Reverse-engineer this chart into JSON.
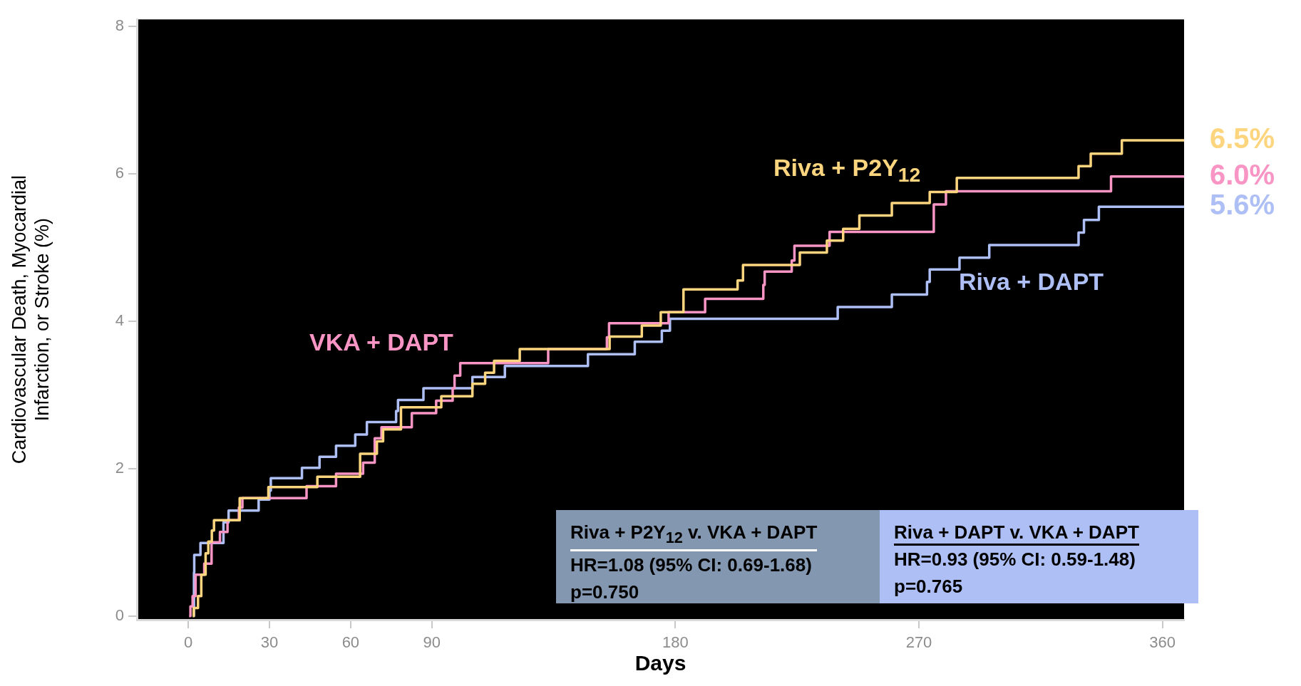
{
  "chart_data": {
    "type": "step",
    "xlabel": "Days",
    "ylabel": "Cardiovascular Death, Myocardial Infarction, or Stroke (%)",
    "xlim": [
      -19,
      368
    ],
    "xticks": [
      0,
      30,
      60,
      90,
      180,
      270,
      360
    ],
    "ylim": [
      -0.05,
      8.09
    ],
    "yticks": [
      0,
      2,
      4,
      6,
      8
    ],
    "grid": false,
    "marker": "none",
    "line_style": "solid",
    "series": [
      {
        "name": "Riva + P2Y$_{12}$",
        "color": "#fcd57e",
        "x": [
          1.6,
          2,
          3.6,
          4.8,
          6.4,
          7.4,
          8.7,
          9.5,
          19,
          29.6,
          47.7,
          63.5,
          69.7,
          72,
          78.6,
          93.5,
          105,
          109.7,
          113,
          122.5,
          155.7,
          167.6,
          174.6,
          183,
          203,
          205,
          226,
          236,
          242,
          248,
          260,
          274,
          284,
          329,
          333.5,
          345,
          368
        ],
        "values": [
          0,
          0.11,
          0.27,
          0.56,
          0.85,
          1.01,
          1.16,
          1.3,
          1.6,
          1.75,
          1.89,
          2.2,
          2.37,
          2.53,
          2.83,
          2.98,
          3.15,
          3.3,
          3.46,
          3.62,
          3.79,
          3.94,
          4.12,
          4.43,
          4.55,
          4.76,
          4.93,
          5.09,
          5.25,
          5.43,
          5.6,
          5.75,
          5.94,
          6.1,
          6.27,
          6.45,
          6.45
        ],
        "value_labels": [
          null,
          null,
          null,
          null,
          null,
          null,
          null,
          null,
          null,
          null,
          null,
          null,
          null,
          null,
          null,
          null,
          null,
          null,
          null,
          null,
          null,
          null,
          null,
          null,
          null,
          null,
          null,
          null,
          null,
          null,
          null,
          null,
          null,
          null,
          null,
          null,
          "6.5%"
        ]
      },
      {
        "name": "VKA + DAPT",
        "color": "#f995c4",
        "x": [
          0.3,
          0.8,
          1.6,
          2.7,
          5.9,
          8.6,
          11.7,
          14.5,
          18.7,
          20,
          43.7,
          54.6,
          64.6,
          68.9,
          71.4,
          82.6,
          91.6,
          97.7,
          98.4,
          100.5,
          133,
          154.7,
          155.5,
          177.5,
          191,
          212.5,
          213,
          223,
          224,
          237,
          275.5,
          280,
          341,
          368
        ],
        "values": [
          0,
          0.13,
          0.27,
          0.56,
          0.71,
          1.0,
          1.14,
          1.3,
          1.47,
          1.6,
          1.76,
          1.93,
          2.08,
          2.41,
          2.56,
          2.75,
          2.92,
          3.09,
          3.26,
          3.43,
          3.62,
          3.78,
          3.97,
          4.12,
          4.3,
          4.49,
          4.67,
          4.82,
          5.02,
          5.21,
          5.58,
          5.76,
          5.96,
          5.96
        ],
        "value_labels": [
          null,
          null,
          null,
          null,
          null,
          null,
          null,
          null,
          null,
          null,
          null,
          null,
          null,
          null,
          null,
          null,
          null,
          null,
          null,
          null,
          null,
          null,
          null,
          null,
          null,
          null,
          null,
          null,
          null,
          null,
          null,
          null,
          null,
          "6.0%"
        ]
      },
      {
        "name": "Riva + DAPT",
        "color": "#aebff5",
        "x": [
          2,
          2.1,
          2.2,
          4.5,
          13,
          14.9,
          26,
          30,
          30.5,
          42,
          48.5,
          54.6,
          61.7,
          66,
          76.8,
          77.5,
          86.9,
          105,
          117,
          147.7,
          165,
          175,
          178,
          240,
          260,
          273,
          274,
          285,
          296,
          329,
          331,
          336.5,
          368
        ],
        "values": [
          0,
          0.59,
          0.83,
          0.99,
          1.27,
          1.43,
          1.58,
          1.7,
          1.87,
          2.01,
          2.16,
          2.31,
          2.46,
          2.63,
          2.78,
          2.93,
          3.09,
          3.24,
          3.39,
          3.55,
          3.72,
          3.87,
          4.03,
          4.19,
          4.36,
          4.53,
          4.7,
          4.86,
          5.03,
          5.2,
          5.37,
          5.55,
          5.55
        ],
        "value_labels": [
          null,
          null,
          null,
          null,
          null,
          null,
          null,
          null,
          null,
          null,
          null,
          null,
          null,
          null,
          null,
          null,
          null,
          null,
          null,
          null,
          null,
          null,
          null,
          null,
          null,
          null,
          null,
          null,
          null,
          null,
          null,
          null,
          "5.6%"
        ]
      }
    ],
    "annotations": [
      "Riva + P2Y$_{12}$ v. VKA + DAPT",
      "HR=1.08 (95% CI: 0.69-1.68)",
      "p=0.750",
      "Riva + DAPT v. VKA + DAPT",
      "HR=0.93 (95% CI: 0.59-1.48)",
      "p=0.765"
    ]
  }
}
